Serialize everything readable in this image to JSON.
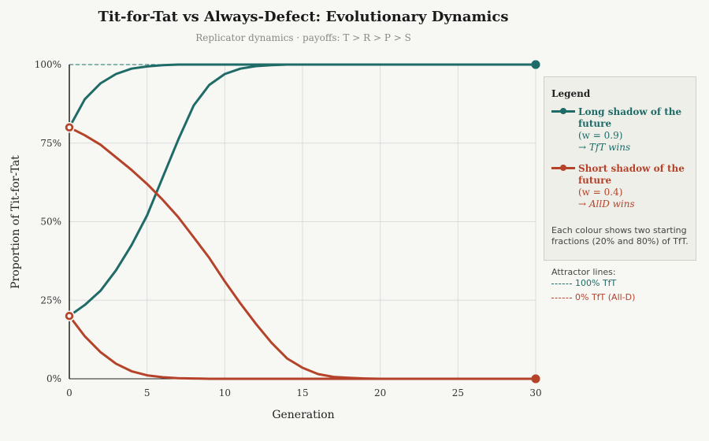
{
  "chart_data": {
    "type": "line",
    "title": "Tit-for-Tat vs Always-Defect: Evolutionary Dynamics",
    "subtitle": "Replicator dynamics  ·  payoffs: T > R > P > S",
    "xlabel": "Generation",
    "ylabel": "Proportion of Tit-for-Tat",
    "xlim": [
      0,
      30
    ],
    "ylim": [
      0,
      100
    ],
    "xticks": [
      0,
      5,
      10,
      15,
      20,
      25,
      30
    ],
    "yticks": [
      0,
      25,
      50,
      75,
      100
    ],
    "ytick_labels": [
      "0%",
      "25%",
      "50%",
      "75%",
      "100%"
    ],
    "grid": true,
    "legend_position": "right",
    "attractors": [
      {
        "value": 100,
        "label": "100% TfT",
        "color": "#1f6b67"
      },
      {
        "value": 0,
        "label": "0% TfT (All-D)",
        "color": "#b5432a"
      }
    ],
    "series": [
      {
        "name": "Long shadow of the future, start 80%",
        "group": "long",
        "color": "#1f6b67",
        "x": [
          0,
          1,
          2,
          3,
          4,
          5,
          6,
          7,
          8,
          9,
          10,
          11,
          12,
          13,
          14,
          15,
          16,
          17,
          18,
          19,
          20,
          21,
          22,
          23,
          24,
          25,
          26,
          27,
          28,
          29,
          30
        ],
        "y": [
          80,
          89,
          94,
          97,
          98.7,
          99.4,
          99.8,
          100,
          100,
          100,
          100,
          100,
          100,
          100,
          100,
          100,
          100,
          100,
          100,
          100,
          100,
          100,
          100,
          100,
          100,
          100,
          100,
          100,
          100,
          100,
          100
        ]
      },
      {
        "name": "Long shadow of the future, start 20%",
        "group": "long",
        "color": "#1f6b67",
        "x": [
          0,
          1,
          2,
          3,
          4,
          5,
          6,
          7,
          8,
          9,
          10,
          11,
          12,
          13,
          14,
          15,
          16,
          17,
          18,
          19,
          20,
          21,
          22,
          23,
          24,
          25,
          26,
          27,
          28,
          29,
          30
        ],
        "y": [
          20,
          23.5,
          28,
          34.5,
          42.5,
          52,
          64,
          76,
          87,
          93.5,
          97,
          98.7,
          99.5,
          99.8,
          100,
          100,
          100,
          100,
          100,
          100,
          100,
          100,
          100,
          100,
          100,
          100,
          100,
          100,
          100,
          100,
          100
        ]
      },
      {
        "name": "Short shadow of the future, start 80%",
        "group": "short",
        "color": "#b5432a",
        "x": [
          0,
          1,
          2,
          3,
          4,
          5,
          6,
          7,
          8,
          9,
          10,
          11,
          12,
          13,
          14,
          15,
          16,
          17,
          18,
          19,
          20,
          21,
          22,
          23,
          24,
          25,
          26,
          27,
          28,
          29,
          30
        ],
        "y": [
          80,
          77.5,
          74.5,
          70.5,
          66.5,
          62,
          57,
          51.5,
          45,
          38.5,
          31,
          24,
          17.5,
          11.5,
          6.5,
          3.5,
          1.5,
          0.6,
          0.3,
          0.1,
          0,
          0,
          0,
          0,
          0,
          0,
          0,
          0,
          0,
          0,
          0
        ]
      },
      {
        "name": "Short shadow of the future, start 20%",
        "group": "short",
        "color": "#b5432a",
        "x": [
          0,
          1,
          2,
          3,
          4,
          5,
          6,
          7,
          8,
          9,
          10,
          11,
          12,
          13,
          14,
          15,
          16,
          17,
          18,
          19,
          20,
          21,
          22,
          23,
          24,
          25,
          26,
          27,
          28,
          29,
          30
        ],
        "y": [
          20,
          13.5,
          8.5,
          4.8,
          2.4,
          1.1,
          0.5,
          0.2,
          0.1,
          0,
          0,
          0,
          0,
          0,
          0,
          0,
          0,
          0,
          0,
          0,
          0,
          0,
          0,
          0,
          0,
          0,
          0,
          0,
          0,
          0,
          0
        ]
      }
    ]
  },
  "legend": {
    "title": "Legend",
    "long": {
      "name": "Long shadow of the future",
      "param": "(w = 0.9)",
      "outcome": "→ TfT wins",
      "color": "#1f6b67"
    },
    "short": {
      "name": "Short shadow of the future",
      "param": "(w = 0.4)",
      "outcome": "→ AllD wins",
      "color": "#b5432a"
    },
    "note": "Each colour shows two starting fractions (20% and 80%) of TfT.",
    "attractor_title": "Attractor lines:"
  }
}
